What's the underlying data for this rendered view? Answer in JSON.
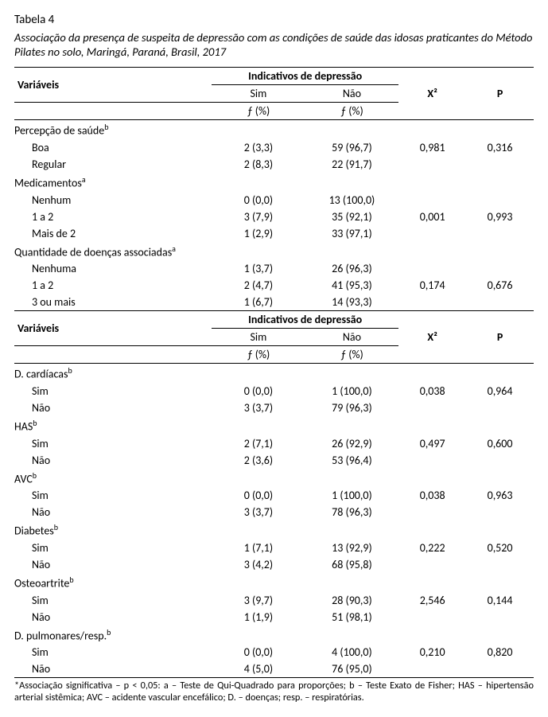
{
  "table_number": "Tabela 4",
  "caption": "Associação da presença de suspeita de depressão com as condições de saúde das idosas praticantes do Método Pilates no solo, Maringá, Paraná, Brasil, 2017",
  "headers": {
    "variaveis": "Variáveis",
    "indicativos": "Indicativos de depressão",
    "sim": "Sim",
    "nao": "Não",
    "fpct": "ƒ (%)",
    "x2": "X²",
    "p": "P"
  },
  "section1": [
    {
      "group": "Percepção de saúde",
      "sup": "b",
      "rows": [
        {
          "label": "Boa",
          "sim": "2 (3,3)",
          "nao": "59 (96,7)"
        },
        {
          "label": "Regular",
          "sim": "2 (8,3)",
          "nao": "22 (91,7)"
        }
      ],
      "x2": "0,981",
      "p": "0,316"
    },
    {
      "group": "Medicamentos",
      "sup": "a",
      "rows": [
        {
          "label": "Nenhum",
          "sim": "0 (0,0)",
          "nao": "13 (100,0)"
        },
        {
          "label": "1 a 2",
          "sim": "3 (7,9)",
          "nao": "35 (92,1)"
        },
        {
          "label": "Mais de 2",
          "sim": "1 (2,9)",
          "nao": "33 (97,1)"
        }
      ],
      "x2": "0,001",
      "p": "0,993"
    },
    {
      "group": "Quantidade de doenças associadas",
      "sup": "a",
      "rows": [
        {
          "label": "Nenhuma",
          "sim": "1 (3,7)",
          "nao": "26 (96,3)"
        },
        {
          "label": "1 a 2",
          "sim": "2 (4,7)",
          "nao": "41 (95,3)"
        },
        {
          "label": "3 ou mais",
          "sim": "1 (6,7)",
          "nao": "14 (93,3)"
        }
      ],
      "x2": "0,174",
      "p": "0,676"
    }
  ],
  "section2": [
    {
      "group": "D. cardíacas",
      "sup": "b",
      "rows": [
        {
          "label": "Sim",
          "sim": "0 (0,0)",
          "nao": "1 (100,0)"
        },
        {
          "label": "Não",
          "sim": "3 (3,7)",
          "nao": "79 (96,3)"
        }
      ],
      "x2": "0,038",
      "p": "0,964"
    },
    {
      "group": "HAS",
      "sup": "b",
      "rows": [
        {
          "label": "Sim",
          "sim": "2 (7,1)",
          "nao": "26 (92,9)"
        },
        {
          "label": "Não",
          "sim": "2 (3,6)",
          "nao": "53 (96,4)"
        }
      ],
      "x2": "0,497",
      "p": "0,600"
    },
    {
      "group": "AVC",
      "sup": "b",
      "rows": [
        {
          "label": "Sim",
          "sim": "0 (0,0)",
          "nao": "1 (100,0)"
        },
        {
          "label": "Não",
          "sim": "3 (3,7)",
          "nao": "78 (96,3)"
        }
      ],
      "x2": "0,038",
      "p": "0,963"
    },
    {
      "group": "Diabetes",
      "sup": "b",
      "rows": [
        {
          "label": "Sim",
          "sim": "1 (7,1)",
          "nao": "13 (92,9)"
        },
        {
          "label": "Não",
          "sim": "3 (4,2)",
          "nao": "68 (95,8)"
        }
      ],
      "x2": "0,222",
      "p": "0,520"
    },
    {
      "group": "Osteoartrite",
      "sup": "b",
      "rows": [
        {
          "label": "Sim",
          "sim": "3 (9,7)",
          "nao": "28 (90,3)"
        },
        {
          "label": "Não",
          "sim": "1 (1,9)",
          "nao": "51 (98,1)"
        }
      ],
      "x2": "2,546",
      "p": "0,144"
    },
    {
      "group": "D. pulmonares/resp.",
      "sup": "b",
      "rows": [
        {
          "label": "Sim",
          "sim": "0 (0,0)",
          "nao": "4 (100,0)"
        },
        {
          "label": "Não",
          "sim": "4 (5,0)",
          "nao": "76 (95,0)"
        }
      ],
      "x2": "0,210",
      "p": "0,820"
    }
  ],
  "footnote": "*Associação significativa – p < 0,05: a – Teste de Qui-Quadrado para proporções; b – Teste Exato de Fisher; HAS – hipertensão arterial sistêmica; AVC – acidente vascular encefálico; D. – doenças; resp. – respiratórias."
}
